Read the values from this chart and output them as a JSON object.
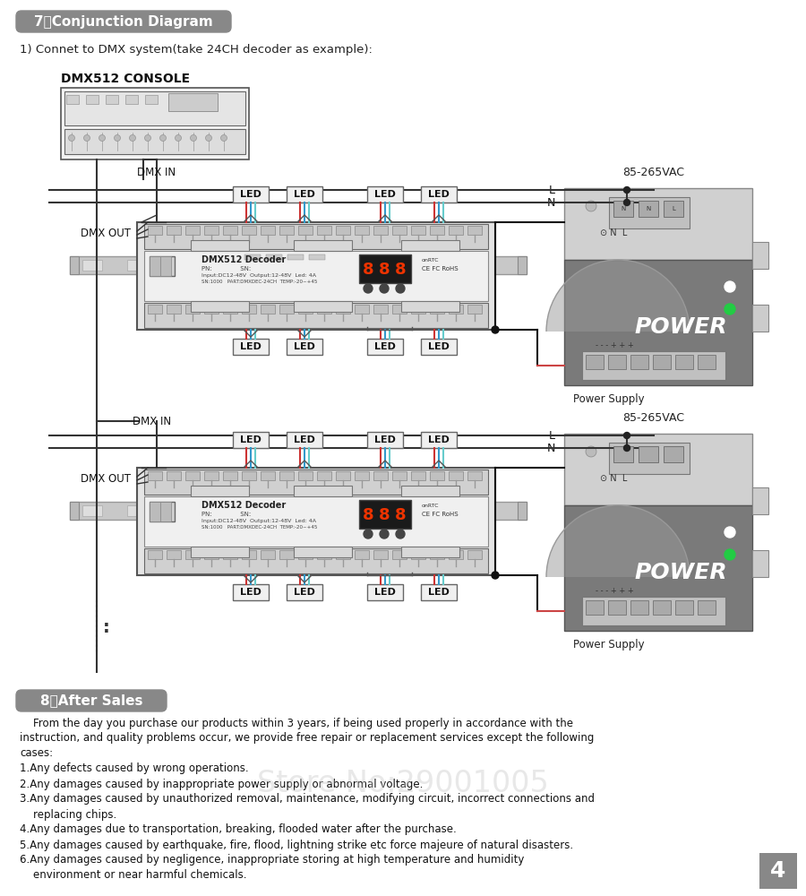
{
  "bg_color": "#ffffff",
  "section7_title": "7，Conjunction Diagram",
  "section7_subtitle": "1) Connet to DMX system(take 24CH decoder as example):",
  "section8_title": "8，After Sales",
  "header_bg": "#888888",
  "header_text_color": "#ffffff",
  "page_num_bg": "#888888",
  "page_num_text": "4",
  "watermark_text": "Store No:29001005",
  "wire_red": "#cc3333",
  "wire_blue": "#3399cc",
  "wire_cyan": "#66cccc",
  "section8_para1": "    From the day you purchase our products within 3 years, if being used properly in accordance with the",
  "section8_para2": "instruction, and quality problems occur, we provide free repair or replacement services except the following",
  "section8_para3": "cases:",
  "section8_items": [
    "1.Any defects caused by wrong operations.",
    "2.Any damages caused by inappropriate power supply or abnormal voltage.",
    "3.Any damages caused by unauthorized removal, maintenance, modifying circuit, incorrect connections and",
    "    replacing chips.",
    "4.Any damages due to transportation, breaking, flooded water after the purchase.",
    "5.Any damages caused by earthquake, fire, flood, lightning strike etc force majeure of natural disasters.",
    "6.Any damages caused by negligence, inappropriate storing at high temperature and humidity",
    "    environment or near harmful chemicals."
  ]
}
